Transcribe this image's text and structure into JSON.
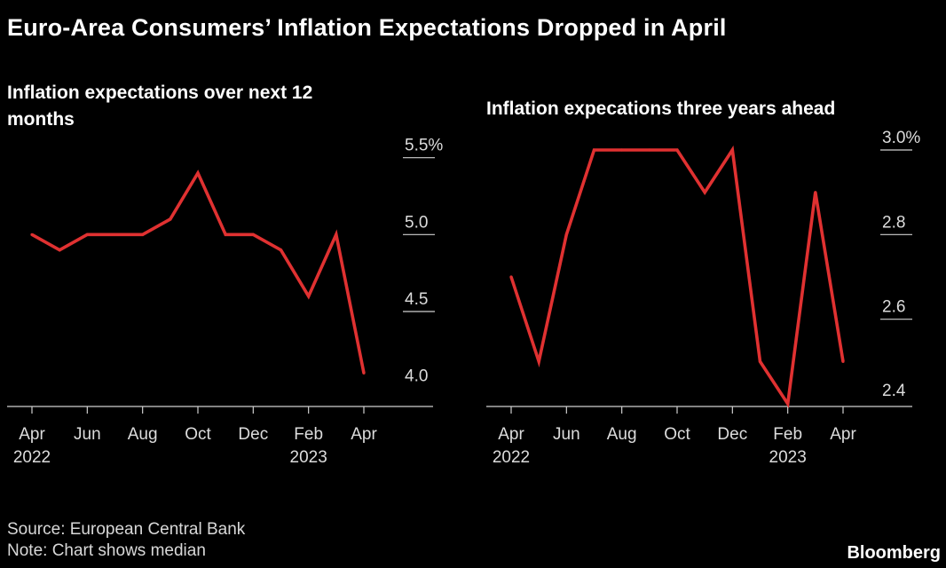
{
  "title": "Euro-Area Consumers’ Inflation Expectations Dropped in April",
  "footer": {
    "source": "Source: European Central Bank",
    "note": "Note: Chart shows median",
    "brand": "Bloomberg"
  },
  "colors": {
    "background": "#000000",
    "line": "#e03131",
    "text": "#ffffff",
    "tick_text": "#dcdcdc",
    "gridline": "#cfcfcf"
  },
  "chart_data": [
    {
      "type": "line",
      "title": "Inflation expectations over next 12 months",
      "x": [
        "Apr 2022",
        "May 2022",
        "Jun 2022",
        "Jul 2022",
        "Aug 2022",
        "Sep 2022",
        "Oct 2022",
        "Nov 2022",
        "Dec 2022",
        "Jan 2023",
        "Feb 2023",
        "Mar 2023",
        "Apr 2023"
      ],
      "series": [
        {
          "values": [
            5.0,
            4.9,
            5.0,
            5.0,
            5.0,
            5.1,
            5.4,
            5.0,
            5.0,
            4.9,
            4.6,
            5.0,
            4.1
          ]
        }
      ],
      "x_ticks": [
        {
          "index": 0,
          "label": "Apr",
          "sublabel": "2022"
        },
        {
          "index": 2,
          "label": "Jun",
          "sublabel": ""
        },
        {
          "index": 4,
          "label": "Aug",
          "sublabel": ""
        },
        {
          "index": 6,
          "label": "Oct",
          "sublabel": ""
        },
        {
          "index": 8,
          "label": "Dec",
          "sublabel": ""
        },
        {
          "index": 10,
          "label": "Feb",
          "sublabel": "2023"
        },
        {
          "index": 12,
          "label": "Apr",
          "sublabel": ""
        }
      ],
      "y_ticks": [
        {
          "value": 5.5,
          "label": "5.5%"
        },
        {
          "value": 5.0,
          "label": "5.0"
        },
        {
          "value": 4.5,
          "label": "4.5"
        },
        {
          "value": 4.0,
          "label": "4.0"
        }
      ],
      "ylim": [
        3.9,
        5.55
      ],
      "y_axis_side": "right",
      "grid": false
    },
    {
      "type": "line",
      "title": "Inflation expecations three years ahead",
      "x": [
        "Apr 2022",
        "May 2022",
        "Jun 2022",
        "Jul 2022",
        "Aug 2022",
        "Sep 2022",
        "Oct 2022",
        "Nov 2022",
        "Dec 2022",
        "Jan 2023",
        "Feb 2023",
        "Mar 2023",
        "Apr 2023"
      ],
      "series": [
        {
          "values": [
            2.7,
            2.5,
            2.8,
            3.0,
            3.0,
            3.0,
            3.0,
            2.9,
            3.0,
            2.5,
            2.4,
            2.9,
            2.5
          ]
        }
      ],
      "x_ticks": [
        {
          "index": 0,
          "label": "Apr",
          "sublabel": "2022"
        },
        {
          "index": 2,
          "label": "Jun",
          "sublabel": ""
        },
        {
          "index": 4,
          "label": "Aug",
          "sublabel": ""
        },
        {
          "index": 6,
          "label": "Oct",
          "sublabel": ""
        },
        {
          "index": 8,
          "label": "Dec",
          "sublabel": ""
        },
        {
          "index": 10,
          "label": "Feb",
          "sublabel": "2023"
        },
        {
          "index": 12,
          "label": "Apr",
          "sublabel": ""
        }
      ],
      "y_ticks": [
        {
          "value": 3.0,
          "label": "3.0%"
        },
        {
          "value": 2.8,
          "label": "2.8"
        },
        {
          "value": 2.6,
          "label": "2.6"
        },
        {
          "value": 2.4,
          "label": "2.4"
        }
      ],
      "ylim": [
        2.4,
        3.0
      ],
      "y_axis_side": "right",
      "grid": false
    }
  ]
}
